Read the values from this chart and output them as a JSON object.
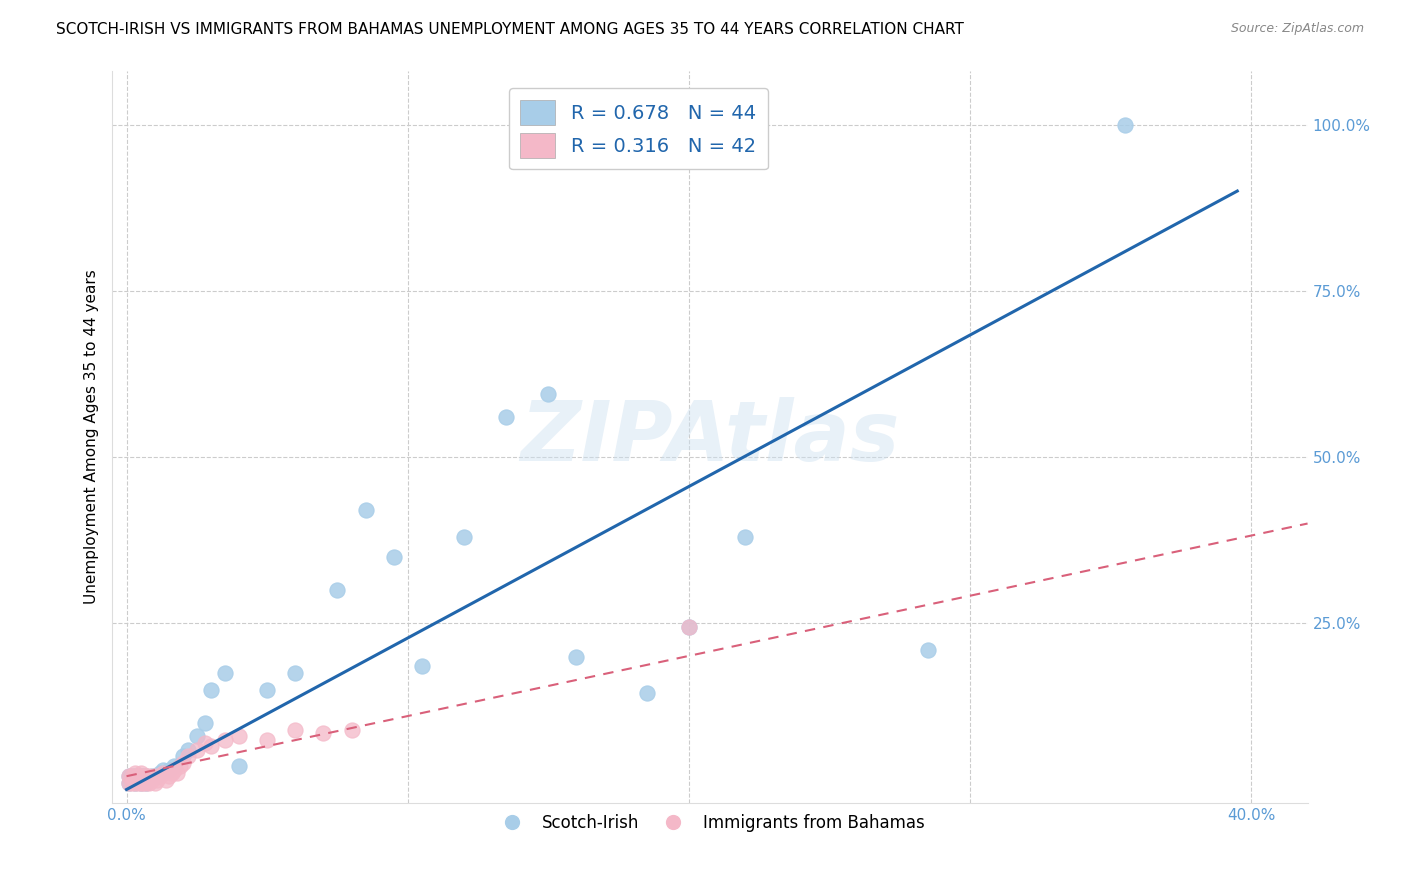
{
  "title": "SCOTCH-IRISH VS IMMIGRANTS FROM BAHAMAS UNEMPLOYMENT AMONG AGES 35 TO 44 YEARS CORRELATION CHART",
  "source": "Source: ZipAtlas.com",
  "ylabel": "Unemployment Among Ages 35 to 44 years",
  "xlim": [
    -0.005,
    0.42
  ],
  "ylim": [
    -0.02,
    1.08
  ],
  "legend_labels": [
    "Scotch-Irish",
    "Immigrants from Bahamas"
  ],
  "R1": "0.678",
  "N1": "44",
  "R2": "0.316",
  "N2": "42",
  "blue_color": "#a8cde8",
  "pink_color": "#f4b8c8",
  "blue_line_color": "#2166ac",
  "pink_line_color": "#d9607a",
  "scotch_irish_x": [
    0.001,
    0.001,
    0.002,
    0.002,
    0.003,
    0.003,
    0.004,
    0.004,
    0.005,
    0.005,
    0.006,
    0.006,
    0.007,
    0.007,
    0.008,
    0.009,
    0.01,
    0.011,
    0.012,
    0.013,
    0.015,
    0.017,
    0.02,
    0.022,
    0.025,
    0.028,
    0.03,
    0.035,
    0.04,
    0.05,
    0.06,
    0.075,
    0.085,
    0.095,
    0.105,
    0.12,
    0.135,
    0.15,
    0.16,
    0.185,
    0.2,
    0.22,
    0.285,
    0.355
  ],
  "scotch_irish_y": [
    0.01,
    0.02,
    0.015,
    0.02,
    0.01,
    0.02,
    0.015,
    0.02,
    0.01,
    0.02,
    0.015,
    0.02,
    0.01,
    0.02,
    0.015,
    0.02,
    0.02,
    0.02,
    0.025,
    0.03,
    0.03,
    0.035,
    0.05,
    0.06,
    0.08,
    0.1,
    0.15,
    0.175,
    0.035,
    0.15,
    0.175,
    0.3,
    0.42,
    0.35,
    0.185,
    0.38,
    0.56,
    0.595,
    0.2,
    0.145,
    0.245,
    0.38,
    0.21,
    1.0
  ],
  "bahamas_x": [
    0.001,
    0.001,
    0.002,
    0.002,
    0.003,
    0.003,
    0.003,
    0.004,
    0.004,
    0.005,
    0.005,
    0.005,
    0.006,
    0.006,
    0.007,
    0.007,
    0.008,
    0.008,
    0.009,
    0.01,
    0.01,
    0.011,
    0.012,
    0.013,
    0.014,
    0.015,
    0.016,
    0.017,
    0.018,
    0.019,
    0.02,
    0.022,
    0.025,
    0.028,
    0.03,
    0.035,
    0.04,
    0.05,
    0.06,
    0.07,
    0.08,
    0.2
  ],
  "bahamas_y": [
    0.01,
    0.02,
    0.01,
    0.02,
    0.01,
    0.015,
    0.025,
    0.01,
    0.02,
    0.01,
    0.015,
    0.025,
    0.01,
    0.02,
    0.01,
    0.02,
    0.01,
    0.02,
    0.015,
    0.01,
    0.02,
    0.015,
    0.02,
    0.025,
    0.015,
    0.02,
    0.025,
    0.03,
    0.025,
    0.035,
    0.04,
    0.05,
    0.06,
    0.07,
    0.065,
    0.075,
    0.08,
    0.075,
    0.09,
    0.085,
    0.09,
    0.245
  ],
  "blue_trend_x0": 0.0,
  "blue_trend_y0": 0.0,
  "blue_trend_x1": 0.395,
  "blue_trend_y1": 0.9,
  "pink_trend_x0": 0.0,
  "pink_trend_y0": 0.02,
  "pink_trend_x1": 0.42,
  "pink_trend_y1": 0.4,
  "grid_color": "#cccccc",
  "watermark_text": "ZIPAtlas",
  "background_color": "#ffffff"
}
